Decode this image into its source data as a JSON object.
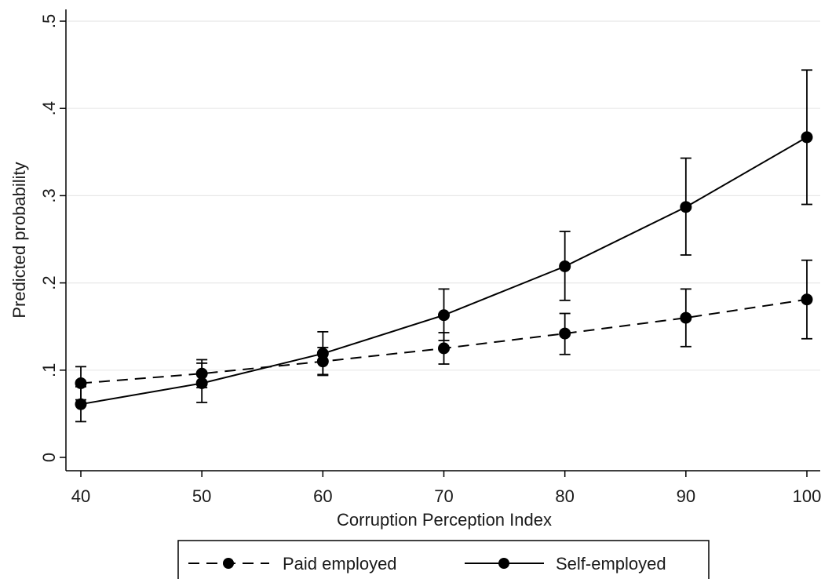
{
  "chart_data": {
    "type": "line",
    "xlabel": "Corruption Perception Index",
    "ylabel": "Predicted probability",
    "x": [
      40,
      50,
      60,
      70,
      80,
      90,
      100
    ],
    "xlim": [
      40,
      100
    ],
    "ylim": [
      0,
      0.5
    ],
    "x_ticks": [
      40,
      50,
      60,
      70,
      80,
      90,
      100
    ],
    "x_tick_labels": [
      "40",
      "50",
      "60",
      "70",
      "80",
      "90",
      "100"
    ],
    "y_ticks": [
      0,
      0.1,
      0.2,
      0.3,
      0.4,
      0.5
    ],
    "y_tick_labels": [
      "0",
      ".1",
      ".2",
      ".3",
      ".4",
      ".5"
    ],
    "grid": true,
    "legend_position": "bottom",
    "series": [
      {
        "name": "Paid employed",
        "style": "dashed",
        "color": "#000000",
        "values": [
          0.085,
          0.096,
          0.11,
          0.125,
          0.142,
          0.16,
          0.181
        ],
        "ci_low": [
          0.066,
          0.08,
          0.094,
          0.107,
          0.118,
          0.127,
          0.136
        ],
        "ci_high": [
          0.104,
          0.112,
          0.126,
          0.143,
          0.165,
          0.193,
          0.226
        ]
      },
      {
        "name": "Self-employed",
        "style": "solid",
        "color": "#000000",
        "values": [
          0.061,
          0.085,
          0.119,
          0.163,
          0.219,
          0.287,
          0.367
        ],
        "ci_low": [
          0.041,
          0.063,
          0.095,
          0.134,
          0.18,
          0.232,
          0.29
        ],
        "ci_high": [
          0.081,
          0.108,
          0.144,
          0.193,
          0.259,
          0.343,
          0.444
        ]
      }
    ]
  }
}
